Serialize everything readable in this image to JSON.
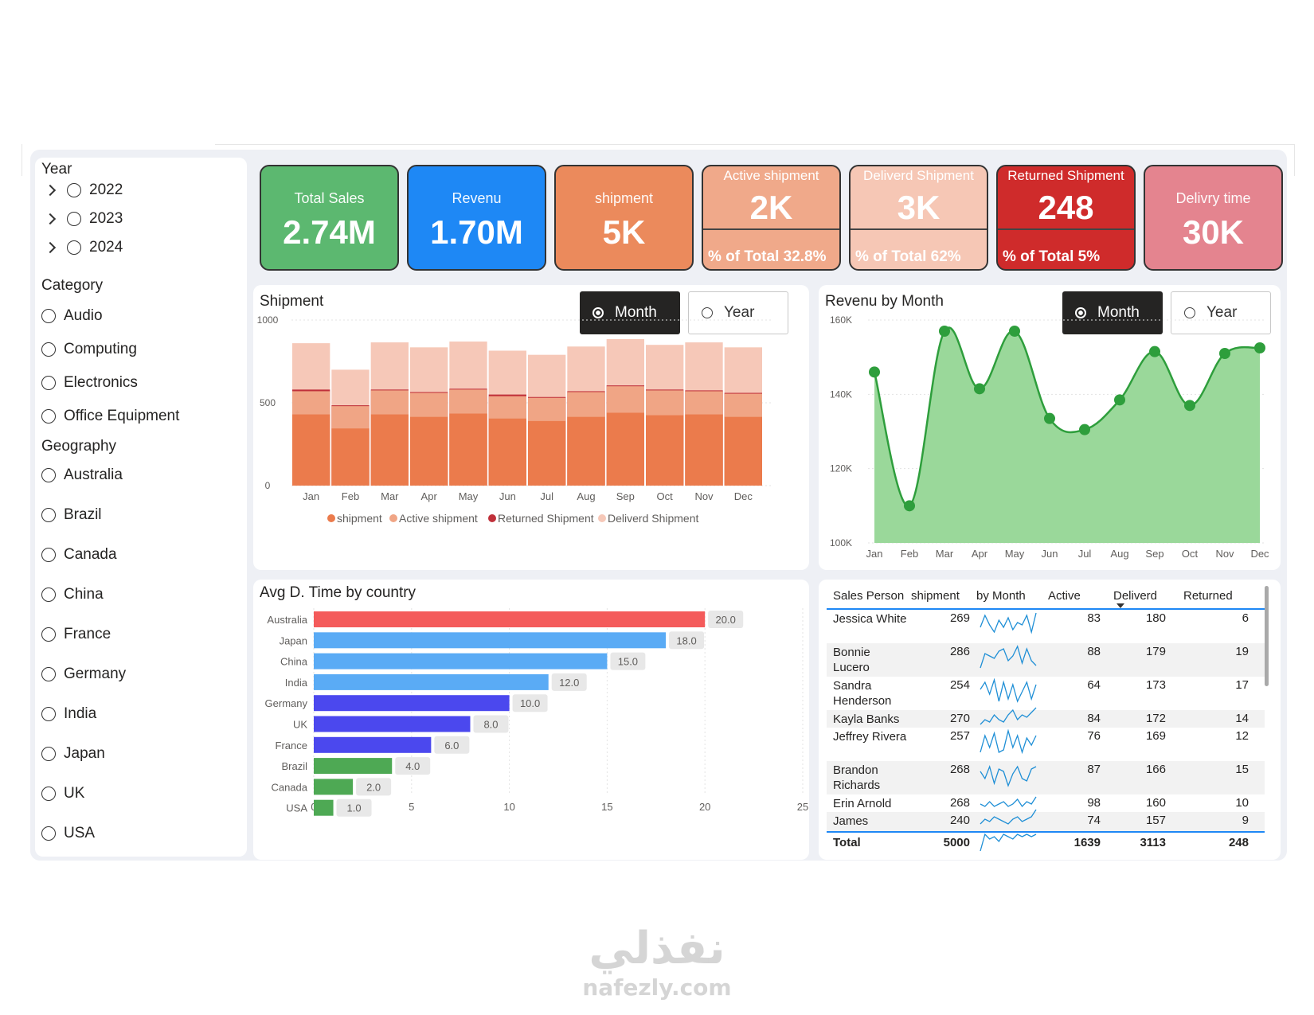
{
  "slicers": {
    "year": {
      "title": "Year",
      "items": [
        "2022",
        "2023",
        "2024"
      ]
    },
    "category": {
      "title": "Category",
      "items": [
        "Audio",
        "Computing",
        "Electronics",
        "Office Equipment"
      ]
    },
    "geography": {
      "title": "Geography",
      "items": [
        "Australia",
        "Brazil",
        "Canada",
        "China",
        "France",
        "Germany",
        "India",
        "Japan",
        "UK",
        "USA"
      ]
    }
  },
  "cards": [
    {
      "title": "Total Sales",
      "value": "2.74M",
      "color": "#5cb870"
    },
    {
      "title": "Revenu",
      "value": "1.70M",
      "color": "#1e88f5"
    },
    {
      "title": "shipment",
      "value": "5K",
      "color": "#eb8a5c"
    },
    {
      "title": "Active shipment",
      "value": "2K",
      "pct": "% of Total 32.8%",
      "color": "#f0a98a"
    },
    {
      "title": "Deliverd Shipment",
      "value": "3K",
      "pct": "% of Total 62%",
      "color": "#f6c7b5"
    },
    {
      "title": "Returned Shipment",
      "value": "248",
      "pct": "% of Total 5%",
      "color": "#cf2b2b"
    },
    {
      "title": "Delivry time",
      "value": "30K",
      "color": "#e4848f"
    }
  ],
  "toggles": {
    "month": "Month",
    "year": "Year"
  },
  "shipment_chart": {
    "title": "Shipment",
    "legend": [
      "shipment",
      "Active shipment",
      "Returned Shipment",
      "Deliverd Shipment"
    ],
    "colors": {
      "shipment": "#eb7b4c",
      "active": "#f0a585",
      "returned": "#c0303a",
      "delivered": "#f6c8b8"
    }
  },
  "revenue_chart": {
    "title": "Revenu by Month",
    "color_line": "#2e9e3c",
    "color_fill": "#9ad89a"
  },
  "country_chart": {
    "title": "Avg D. Time by country"
  },
  "chart_data": [
    {
      "type": "bar",
      "title": "Shipment",
      "categories": [
        "Jan",
        "Feb",
        "Mar",
        "Apr",
        "May",
        "Jun",
        "Jul",
        "Aug",
        "Sep",
        "Oct",
        "Nov",
        "Dec"
      ],
      "ylim": [
        0,
        1000
      ],
      "yticks": [
        0,
        500,
        1000
      ],
      "series": [
        {
          "name": "shipment",
          "values": [
            430,
            345,
            430,
            415,
            435,
            405,
            390,
            415,
            440,
            425,
            430,
            415
          ]
        },
        {
          "name": "Active shipment",
          "values": [
            570,
            480,
            575,
            560,
            580,
            540,
            530,
            565,
            600,
            575,
            570,
            555
          ]
        },
        {
          "name": "Returned Shipment",
          "values": [
            580,
            485,
            580,
            565,
            585,
            550,
            535,
            570,
            605,
            580,
            575,
            560
          ]
        },
        {
          "name": "Deliverd Shipment",
          "values": [
            860,
            700,
            865,
            835,
            870,
            815,
            790,
            840,
            885,
            850,
            865,
            835
          ]
        }
      ]
    },
    {
      "type": "area",
      "title": "Revenu by Month",
      "categories": [
        "Jan",
        "Feb",
        "Mar",
        "Apr",
        "May",
        "Jun",
        "Jul",
        "Aug",
        "Sep",
        "Oct",
        "Nov",
        "Dec"
      ],
      "ylim": [
        100000,
        160000
      ],
      "yticks": [
        "100K",
        "120K",
        "140K",
        "160K"
      ],
      "values": [
        146000,
        110000,
        157000,
        141500,
        157000,
        133500,
        130500,
        138500,
        151500,
        137000,
        151000,
        152500
      ]
    },
    {
      "type": "bar",
      "title": "Avg D. Time by country",
      "orientation": "horizontal",
      "categories": [
        "Australia",
        "Japan",
        "China",
        "India",
        "Germany",
        "UK",
        "France",
        "Brazil",
        "Canada",
        "USA"
      ],
      "values": [
        20.0,
        18.0,
        15.0,
        12.0,
        10.0,
        8.0,
        6.0,
        4.0,
        2.0,
        1.0
      ],
      "labels": [
        "20.0",
        "18.0",
        "15.0",
        "12.0",
        "10.0",
        "8.0",
        "6.0",
        "4.0",
        "2.0",
        "1.0"
      ],
      "colors": [
        "#f45b5b",
        "#5aabf5",
        "#5aabf5",
        "#5aabf5",
        "#4b48ee",
        "#4b48ee",
        "#4b48ee",
        "#4ea954",
        "#4ea954",
        "#4ea954"
      ],
      "xlim": [
        0,
        25
      ],
      "xticks": [
        0,
        5,
        10,
        15,
        20,
        25
      ]
    },
    {
      "type": "table",
      "columns": [
        "Sales Person",
        "shipment",
        "by Month",
        "Active",
        "Deliverd",
        "Returned"
      ],
      "rows": [
        {
          "name": "Jessica White",
          "shipment": "269",
          "active": "83",
          "delivered": "180",
          "returned": "6",
          "spark": [
            4,
            9,
            5,
            2,
            7,
            4,
            8,
            3,
            6,
            5,
            9,
            2,
            10
          ]
        },
        {
          "name": "Bonnie Lucero",
          "shipment": "286",
          "active": "88",
          "delivered": "179",
          "returned": "19",
          "spark": [
            1,
            7,
            6,
            5,
            8,
            9,
            4,
            6,
            10,
            3,
            9,
            4,
            2
          ]
        },
        {
          "name": "Sandra Henderson",
          "shipment": "254",
          "active": "64",
          "delivered": "173",
          "returned": "17",
          "spark": [
            6,
            9,
            4,
            10,
            1,
            9,
            2,
            8,
            1,
            5,
            9,
            2,
            8
          ]
        },
        {
          "name": "Kayla Banks",
          "shipment": "270",
          "active": "84",
          "delivered": "172",
          "returned": "14",
          "spark": [
            2,
            4,
            3,
            6,
            4,
            3,
            6,
            8,
            4,
            6,
            5,
            7,
            9
          ]
        },
        {
          "name": "Jeffrey Rivera",
          "shipment": "257",
          "active": "76",
          "delivered": "169",
          "returned": "12",
          "spark": [
            1,
            8,
            3,
            9,
            1,
            2,
            10,
            3,
            8,
            1,
            7,
            4,
            8
          ]
        },
        {
          "name": "Brandon Richards",
          "shipment": "268",
          "active": "87",
          "delivered": "166",
          "returned": "15",
          "spark": [
            7,
            4,
            9,
            2,
            8,
            7,
            1,
            6,
            9,
            4,
            3,
            8,
            9
          ]
        },
        {
          "name": "Erin Arnold",
          "shipment": "268",
          "active": "98",
          "delivered": "160",
          "returned": "10",
          "spark": [
            4,
            3,
            5,
            3,
            4,
            5,
            3,
            4,
            6,
            3,
            5,
            4,
            7
          ]
        },
        {
          "name": "James",
          "shipment": "240",
          "active": "74",
          "delivered": "157",
          "returned": "9",
          "spark": [
            3,
            5,
            4,
            6,
            5,
            4,
            3,
            5,
            6,
            4,
            5,
            6,
            9
          ]
        }
      ],
      "total": {
        "label": "Total",
        "shipment": "5000",
        "active": "1639",
        "delivered": "3113",
        "returned": "248",
        "spark": [
          1,
          8,
          6,
          7,
          5,
          8,
          7,
          6,
          8,
          7,
          8,
          7,
          8
        ]
      }
    }
  ],
  "watermark": {
    "arabic": "نفذلي",
    "latin": "nafezly.com"
  }
}
